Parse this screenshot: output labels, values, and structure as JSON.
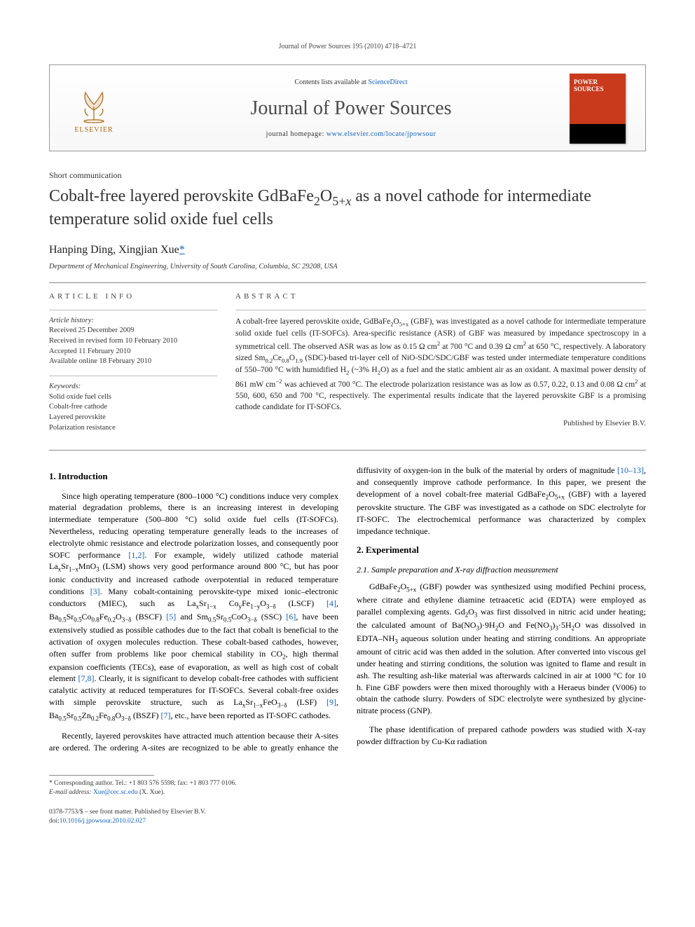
{
  "running_head": "Journal of Power Sources 195 (2010) 4718–4721",
  "masthead": {
    "contents_prefix": "Contents lists available at ",
    "contents_link": "ScienceDirect",
    "journal_name": "Journal of Power Sources",
    "homepage_prefix": "journal homepage: ",
    "homepage_url": "www.elsevier.com/locate/jpowsour",
    "publisher_name": "ELSEVIER",
    "cover_title": "POWER SOURCES",
    "cover_bg": "#c93a1d",
    "logo_color": "#b0640d"
  },
  "article_type": "Short communication",
  "title_html": "Cobalt-free layered perovskite GdBaFe<sub>2</sub>O<sub>5+<i>x</i></sub> as a novel cathode for intermediate temperature solid oxide fuel cells",
  "authors": {
    "list": "Hanping Ding, Xingjian Xue",
    "corr_marker": "*"
  },
  "affiliation": "Department of Mechanical Engineering, University of South Carolina, Columbia, SC 29208, USA",
  "article_info": {
    "heading": "ARTICLE INFO",
    "history_label": "Article history:",
    "history": [
      "Received 25 December 2009",
      "Received in revised form 10 February 2010",
      "Accepted 11 February 2010",
      "Available online 18 February 2010"
    ],
    "keywords_label": "Keywords:",
    "keywords": [
      "Solid oxide fuel cells",
      "Cobalt-free cathode",
      "Layered perovskite",
      "Polarization resistance"
    ]
  },
  "abstract": {
    "heading": "ABSTRACT",
    "text_html": "A cobalt-free layered perovskite oxide, GdBaFe<sub>2</sub>O<sub>5+x</sub> (GBF), was investigated as a novel cathode for intermediate temperature solid oxide fuel cells (IT-SOFCs). Area-specific resistance (ASR) of GBF was measured by impedance spectroscopy in a symmetrical cell. The observed ASR was as low as 0.15 Ω cm<sup>2</sup> at 700 °C and 0.39 Ω cm<sup>2</sup> at 650 °C, respectively. A laboratory sized Sm<sub>0.2</sub>Ce<sub>0.8</sub>O<sub>1.9</sub> (SDC)-based tri-layer cell of NiO-SDC/SDC/GBF was tested under intermediate temperature conditions of 550–700 °C with humidified H<sub>2</sub> (~3% H<sub>2</sub>O) as a fuel and the static ambient air as an oxidant. A maximal power density of 861 mW cm<sup>−2</sup> was achieved at 700 °C. The electrode polarization resistance was as low as 0.57, 0.22, 0.13 and 0.08 Ω cm<sup>2</sup> at 550, 600, 650 and 700 °C, respectively. The experimental results indicate that the layered perovskite GBF is a promising cathode candidate for IT-SOFCs.",
    "published_by": "Published by Elsevier B.V."
  },
  "body": {
    "sec1_heading": "1.  Introduction",
    "sec1_p1_html": "Since high operating temperature (800–1000 °C) conditions induce very complex material degradation problems, there is an increasing interest in developing intermediate temperature (500–800 °C) solid oxide fuel cells (IT-SOFCs). Nevertheless, reducing operating temperature generally leads to the increases of electrolyte ohmic resistance and electrode polarization losses, and consequently poor SOFC performance <span class=\"ref\">[1,2]</span>. For example, widely utilized cathode material La<sub>x</sub>Sr<sub>1−x</sub>MnO<sub>3</sub> (LSM) shows very good performance around 800 °C, but has poor ionic conductivity and increased cathode overpotential in reduced temperature conditions <span class=\"ref\">[3]</span>. Many cobalt-containing perovskite-type mixed ionic–electronic conductors (MIEC), such as La<sub>x</sub>Sr<sub>1−x</sub> Co<sub>y</sub>Fe<sub>1−y</sub>O<sub>3−δ</sub> (LSCF) <span class=\"ref\">[4]</span>, Ba<sub>0.5</sub>Sr<sub>0.5</sub>Co<sub>0.8</sub>Fe<sub>0.2</sub>O<sub>3−δ</sub> (BSCF) <span class=\"ref\">[5]</span> and Sm<sub>0.5</sub>Sr<sub>0.5</sub>CoO<sub>3−δ</sub> (SSC) <span class=\"ref\">[6]</span>, have been extensively studied as possible cathodes due to the fact that cobalt is beneficial to the activation of oxygen molecules reduction. These cobalt-based cathodes, however, often suffer from problems like poor chemical stability in CO<sub>2</sub>, high thermal expansion coefficients (TECs), ease of evaporation, as well as high cost of cobalt element <span class=\"ref\">[7,8]</span>. Clearly, it is significant to develop cobalt-free cathodes with sufficient catalytic activity at reduced temperatures for IT-SOFCs. Several cobalt-free oxides with simple perovskite structure, such as La<sub>x</sub>Sr<sub>1−x</sub>FeO<sub>3−δ</sub> (LSF) <span class=\"ref\">[9]</span>, Ba<sub>0.5</sub>Sr<sub>0.5</sub>Zn<sub>0.2</sub>Fe<sub>0.8</sub>O<sub>3−δ</sub> (BSZF) <span class=\"ref\">[7]</span>, etc., have been reported as IT-SOFC cathodes.",
    "sec1_p2_html": "Recently, layered perovskites have attracted much attention because their A-sites are ordered. The ordering A-sites are recognized to be able to greatly enhance the diffusivity of oxygen-ion in the bulk of the material by orders of magnitude <span class=\"ref\">[10–13]</span>, and consequently improve cathode performance. In this paper, we present the development of a novel cobalt-free material GdBaFe<sub>2</sub>O<sub>5+x</sub> (GBF) with a layered perovskite structure. The GBF was investigated as a cathode on SDC electrolyte for IT-SOFC. The electrochemical performance was characterized by complex impedance technique.",
    "sec2_heading": "2.  Experimental",
    "sec21_heading": "2.1.  Sample preparation and X-ray diffraction measurement",
    "sec21_p1_html": "GdBaFe<sub>2</sub>O<sub>5+x</sub> (GBF) powder was synthesized using modified Pechini process, where citrate and ethylene diamine tetraacetic acid (EDTA) were employed as parallel complexing agents. Gd<sub>2</sub>O<sub>3</sub> was first dissolved in nitric acid under heating; the calculated amount of Ba(NO<sub>3</sub>)·9H<sub>2</sub>O and Fe(NO<sub>3</sub>)<sub>3</sub>·5H<sub>2</sub>O was dissolved in EDTA–NH<sub>3</sub> aqueous solution under heating and stirring conditions. An appropriate amount of citric acid was then added in the solution. After converted into viscous gel under heating and stirring conditions, the solution was ignited to flame and result in ash. The resulting ash-like material was afterwards calcined in air at 1000 °C for 10 h. Fine GBF powders were then mixed thoroughly with a Heraeus binder (V006) to obtain the cathode slurry. Powders of SDC electrolyte were synthesized by glycine-nitrate process (GNP).",
    "sec21_p2_html": "The phase identification of prepared cathode powders was studied with X-ray powder diffraction by Cu-Kα radiation"
  },
  "footnote": {
    "corr_label": "* Corresponding author. Tel.: +1 803 576 5598; fax: +1 803 777 0106.",
    "email_label": "E-mail address: ",
    "email": "Xue@cec.sc.edu",
    "email_suffix": " (X. Xue)."
  },
  "footer": {
    "line1": "0378-7753/$ – see front matter. Published by Elsevier B.V.",
    "doi_prefix": "doi:",
    "doi": "10.1016/j.jpowsour.2010.02.027"
  },
  "colors": {
    "link": "#1061c3",
    "text": "#222222",
    "rule": "#888888",
    "cover_bg": "#c93a1d",
    "logo": "#b0640d"
  }
}
